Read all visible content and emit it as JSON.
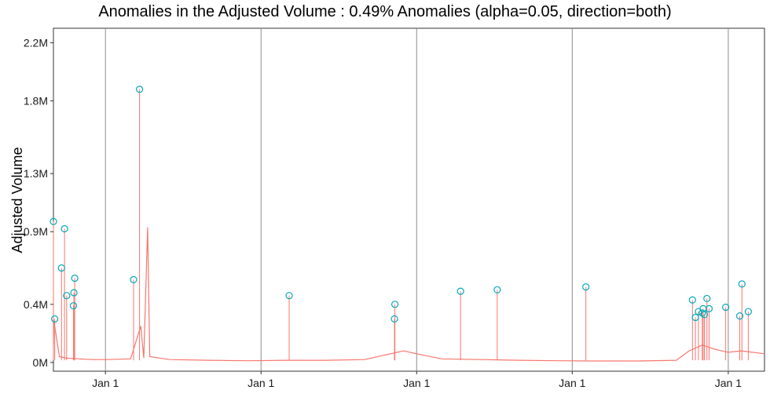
{
  "chart_data": {
    "type": "line",
    "title": "Anomalies in the Adjusted Volume : 0.49% Anomalies (alpha=0.05, direction=both)",
    "xlabel": "",
    "ylabel": "Adjusted Volume",
    "ylim": [
      -60000,
      2300000
    ],
    "y_ticks": [
      {
        "value": 0,
        "label": "0M"
      },
      {
        "value": 400000,
        "label": "0.4M"
      },
      {
        "value": 900000,
        "label": "0.9M"
      },
      {
        "value": 1300000,
        "label": "1.3M"
      },
      {
        "value": 1800000,
        "label": "1.8M"
      },
      {
        "value": 2200000,
        "label": "2.2M"
      }
    ],
    "x_range": [
      "2012-09-01",
      "2017-03-27"
    ],
    "x_ticks": [
      {
        "date": "2013-01-01",
        "label": "Jan 1"
      },
      {
        "date": "2014-01-01",
        "label": "Jan 1"
      },
      {
        "date": "2015-01-01",
        "label": "Jan 1"
      },
      {
        "date": "2016-01-01",
        "label": "Jan 1"
      },
      {
        "date": "2017-01-01",
        "label": "Jan 1"
      }
    ],
    "grid": "vertical lines at year boundaries",
    "line_color": "#F8766D",
    "anomaly_color": "#00A9B8",
    "series": [
      {
        "values": [
          {
            "x": "2012-09-01",
            "y": 120000
          },
          {
            "x": "2012-09-02",
            "y": 290000
          },
          {
            "x": "2012-09-15",
            "y": 40000
          },
          {
            "x": "2012-10-01",
            "y": 30000
          },
          {
            "x": "2012-11-01",
            "y": 25000
          },
          {
            "x": "2012-12-01",
            "y": 20000
          },
          {
            "x": "2013-01-01",
            "y": 20000
          },
          {
            "x": "2013-03-01",
            "y": 25000
          },
          {
            "x": "2013-03-25",
            "y": 250000
          },
          {
            "x": "2013-04-01",
            "y": 30000
          },
          {
            "x": "2013-04-10",
            "y": 930000
          },
          {
            "x": "2013-04-15",
            "y": 40000
          },
          {
            "x": "2013-06-01",
            "y": 20000
          },
          {
            "x": "2013-09-01",
            "y": 15000
          },
          {
            "x": "2013-12-01",
            "y": 12000
          },
          {
            "x": "2014-03-01",
            "y": 15000
          },
          {
            "x": "2014-06-01",
            "y": 15000
          },
          {
            "x": "2014-09-01",
            "y": 20000
          },
          {
            "x": "2014-12-01",
            "y": 80000
          },
          {
            "x": "2015-01-01",
            "y": 60000
          },
          {
            "x": "2015-03-01",
            "y": 25000
          },
          {
            "x": "2015-06-01",
            "y": 20000
          },
          {
            "x": "2015-09-01",
            "y": 15000
          },
          {
            "x": "2015-12-01",
            "y": 12000
          },
          {
            "x": "2016-03-01",
            "y": 10000
          },
          {
            "x": "2016-06-01",
            "y": 10000
          },
          {
            "x": "2016-09-01",
            "y": 15000
          },
          {
            "x": "2016-10-01",
            "y": 80000
          },
          {
            "x": "2016-11-01",
            "y": 120000
          },
          {
            "x": "2016-12-01",
            "y": 90000
          },
          {
            "x": "2017-01-01",
            "y": 70000
          },
          {
            "x": "2017-02-01",
            "y": 80000
          },
          {
            "x": "2017-03-27",
            "y": 60000
          }
        ]
      }
    ],
    "anomalies": [
      {
        "x": "2012-09-01",
        "y": 970000
      },
      {
        "x": "2012-09-04",
        "y": 300000
      },
      {
        "x": "2012-09-20",
        "y": 650000
      },
      {
        "x": "2012-09-27",
        "y": 920000
      },
      {
        "x": "2012-10-02",
        "y": 460000
      },
      {
        "x": "2012-10-18",
        "y": 390000
      },
      {
        "x": "2012-10-19",
        "y": 480000
      },
      {
        "x": "2012-10-21",
        "y": 580000
      },
      {
        "x": "2013-03-08",
        "y": 570000
      },
      {
        "x": "2013-03-22",
        "y": 1880000
      },
      {
        "x": "2014-03-08",
        "y": 460000
      },
      {
        "x": "2014-11-10",
        "y": 300000
      },
      {
        "x": "2014-11-11",
        "y": 400000
      },
      {
        "x": "2015-04-14",
        "y": 490000
      },
      {
        "x": "2015-07-09",
        "y": 500000
      },
      {
        "x": "2016-02-02",
        "y": 520000
      },
      {
        "x": "2016-10-09",
        "y": 430000
      },
      {
        "x": "2016-10-16",
        "y": 310000
      },
      {
        "x": "2016-10-23",
        "y": 350000
      },
      {
        "x": "2016-11-01",
        "y": 340000
      },
      {
        "x": "2016-11-03",
        "y": 370000
      },
      {
        "x": "2016-11-06",
        "y": 330000
      },
      {
        "x": "2016-11-12",
        "y": 440000
      },
      {
        "x": "2016-11-17",
        "y": 370000
      },
      {
        "x": "2016-12-26",
        "y": 380000
      },
      {
        "x": "2017-01-28",
        "y": 320000
      },
      {
        "x": "2017-02-02",
        "y": 540000
      },
      {
        "x": "2017-02-17",
        "y": 350000
      }
    ]
  }
}
